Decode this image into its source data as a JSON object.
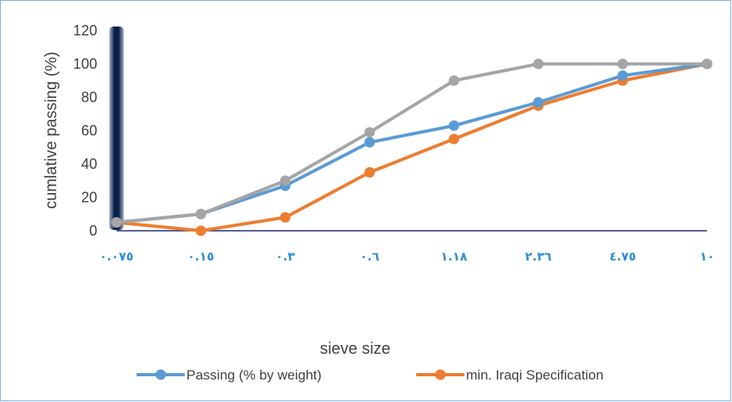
{
  "chart_data": {
    "type": "line",
    "xlabel": "sieve size",
    "ylabel": "cumlative passing (%)",
    "categories": [
      "٠.٠٧٥",
      "٠.١٥",
      "٠.٣",
      "٠.٦",
      "١.١٨",
      "٢.٣٦",
      "٤.٧٥",
      "١٠"
    ],
    "ylim": [
      0,
      120
    ],
    "yticks": [
      0,
      20,
      40,
      60,
      80,
      100,
      120
    ],
    "grid": false,
    "legend_position": "bottom",
    "series": [
      {
        "name": "Passing (% by weight)",
        "color": "#5b9bd5",
        "values": [
          5,
          10,
          27,
          53,
          63,
          77,
          93,
          100
        ]
      },
      {
        "name": "min. Iraqi Specification",
        "color": "#ed7d31",
        "values": [
          5,
          0,
          8,
          35,
          55,
          75,
          90,
          100
        ]
      },
      {
        "name": "",
        "color": "#a5a5a5",
        "values": [
          5,
          10,
          30,
          59,
          90,
          100,
          100,
          100
        ]
      }
    ]
  }
}
